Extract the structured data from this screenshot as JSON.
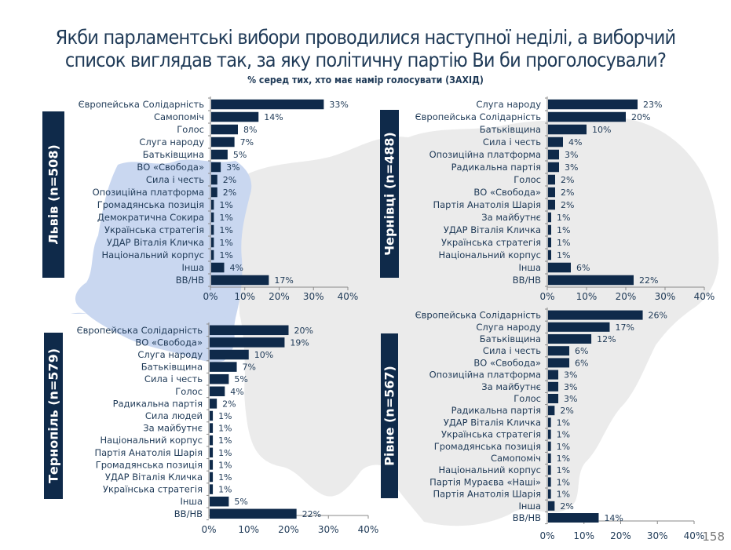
{
  "header": {
    "title_line1": "Якби парламентські вибори проводилися наступної неділі, а виборчий",
    "title_line2": "список виглядав так, за яку політичну партію Ви би проголосували?",
    "subtitle": "% серед тих, хто має намір голосувати (ЗАХІД)"
  },
  "page_number": "158",
  "colors": {
    "bar": "#0f2a4a",
    "text": "#1f3a57",
    "map_highlight": "#c9d7f0",
    "map_gray": "#e8e8e8",
    "label_box": "#0f2a4a"
  },
  "chart_data": [
    {
      "type": "bar",
      "orientation": "horizontal",
      "panel_label": "Львів (n=508)",
      "xlim": [
        0,
        40
      ],
      "xticks": [
        "0%",
        "10%",
        "20%",
        "30%",
        "40%"
      ],
      "categories": [
        "Європейська Солідарність",
        "Самопоміч",
        "Голос",
        "Слуга народу",
        "Батьківщина",
        "ВО «Свобода»",
        "Сила і честь",
        "Опозиційна платформа",
        "Громадянська позиція",
        "Демократична Сокира",
        "Українська стратегія",
        "УДАР Віталія Кличка",
        "Національний корпус",
        "Інша",
        "ВВ/НВ"
      ],
      "values": [
        33,
        14,
        8,
        7,
        5,
        3,
        2,
        2,
        1,
        1,
        1,
        1,
        1,
        4,
        17
      ],
      "value_labels": [
        "33%",
        "14%",
        "8%",
        "7%",
        "5%",
        "3%",
        "2%",
        "2%",
        "1%",
        "1%",
        "1%",
        "1%",
        "1%",
        "4%",
        "17%"
      ]
    },
    {
      "type": "bar",
      "orientation": "horizontal",
      "panel_label": "Чернівці (n=488)",
      "xlim": [
        0,
        40
      ],
      "xticks": [
        "0%",
        "10%",
        "20%",
        "30%",
        "40%"
      ],
      "categories": [
        "Слуга народу",
        "Європейська Солідарність",
        "Батьківщина",
        "Сила і честь",
        "Опозиційна платформа",
        "Радикальна партія",
        "Голос",
        "ВО «Свобода»",
        "Партія Анатолія Шарія",
        "За майбутнє",
        "УДАР Віталія Кличка",
        "Українська стратегія",
        "Національний корпус",
        "Інша",
        "ВВ/НВ"
      ],
      "values": [
        23,
        20,
        10,
        4,
        3,
        3,
        2,
        2,
        2,
        1,
        1,
        1,
        1,
        6,
        22
      ],
      "value_labels": [
        "23%",
        "20%",
        "10%",
        "4%",
        "3%",
        "3%",
        "2%",
        "2%",
        "2%",
        "1%",
        "1%",
        "1%",
        "1%",
        "6%",
        "22%"
      ]
    },
    {
      "type": "bar",
      "orientation": "horizontal",
      "panel_label": "Тернопіль (n=579)",
      "xlim": [
        0,
        40
      ],
      "xticks": [
        "0%",
        "10%",
        "20%",
        "30%",
        "40%"
      ],
      "categories": [
        "Європейська Солідарність",
        "ВО «Свобода»",
        "Слуга народу",
        "Батьківщина",
        "Сила і честь",
        "Голос",
        "Радикальна партія",
        "Сила людей",
        "За майбутнє",
        "Національний корпус",
        "Партія Анатолія Шарія",
        "Громадянська позиція",
        "УДАР Віталія Кличка",
        "Українська стратегія",
        "Інша",
        "ВВ/НВ"
      ],
      "values": [
        20,
        19,
        10,
        7,
        5,
        4,
        2,
        1,
        1,
        1,
        1,
        1,
        1,
        1,
        5,
        22
      ],
      "value_labels": [
        "20%",
        "19%",
        "10%",
        "7%",
        "5%",
        "4%",
        "2%",
        "1%",
        "1%",
        "1%",
        "1%",
        "1%",
        "1%",
        "1%",
        "5%",
        "22%"
      ]
    },
    {
      "type": "bar",
      "orientation": "horizontal",
      "panel_label": "Рівне (n=567)",
      "xlim": [
        0,
        40
      ],
      "xticks": [
        "0%",
        "10%",
        "20%",
        "30%",
        "40%"
      ],
      "categories": [
        "Європейська Солідарність",
        "Слуга народу",
        "Батьківщина",
        "Сила і честь",
        "ВО «Свобода»",
        "Опозиційна платформа",
        "За майбутнє",
        "Голос",
        "Радикальна партія",
        "УДАР Віталія Кличка",
        "Українська стратегія",
        "Громадянська позиція",
        "Самопоміч",
        "Національний корпус",
        "Партія Мураєва «Наші»",
        "Партія Анатолія Шарія",
        "Інша",
        "ВВ/НВ"
      ],
      "values": [
        26,
        17,
        12,
        6,
        6,
        3,
        3,
        3,
        2,
        1,
        1,
        1,
        1,
        1,
        1,
        1,
        2,
        14
      ],
      "value_labels": [
        "26%",
        "17%",
        "12%",
        "6%",
        "6%",
        "3%",
        "3%",
        "3%",
        "2%",
        "1%",
        "1%",
        "1%",
        "1%",
        "1%",
        "1%",
        "1%",
        "2%",
        "14%"
      ]
    }
  ]
}
